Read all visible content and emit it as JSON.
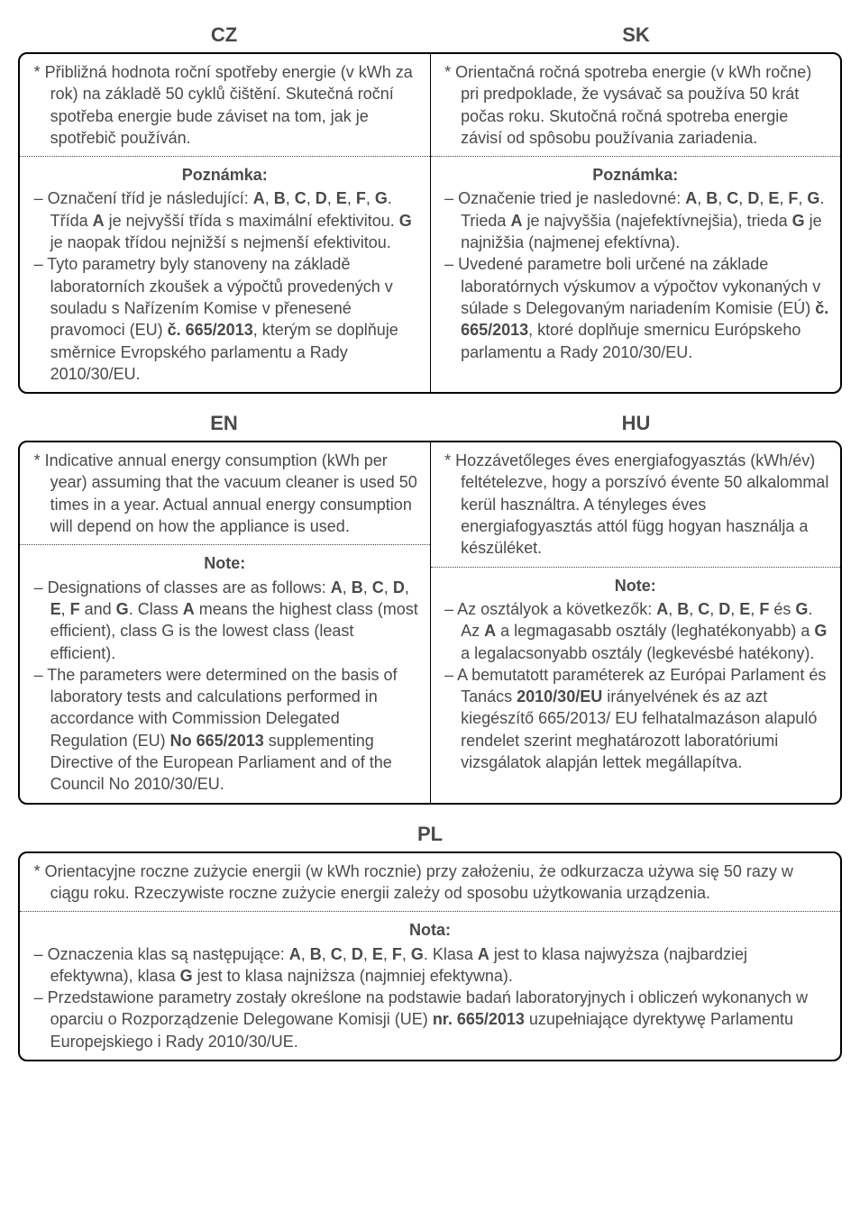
{
  "style": {
    "header_fontsize": 22,
    "body_fontsize": 18,
    "header_color": "#4a4a4a",
    "body_color": "#4a4a4a",
    "border_color": "#000000",
    "dotted_color": "#444444",
    "background": "#ffffff"
  },
  "sections": [
    {
      "type": "pair",
      "heads": [
        "CZ",
        "SK"
      ],
      "rows": [
        {
          "left": "* Přibližná hodnota roční spotřeby energie (v kWh za rok) na základě 50 cyklů čištění. Skutečná roční spotřeba energie bude záviset na tom, jak je spotřebič používán.",
          "right": "* Orientačná ročná spotreba energie (v kWh ročne) pri predpoklade, že vysávač sa používa 50 krát počas roku. Skutočná ročná spotreba energie závisí od spôsobu používania zariadenia."
        },
        {
          "left_note_title": "Poznámka:",
          "left_items": [
            "– Označení tříd je následující: <b>A</b>, <b>B</b>, <b>C</b>, <b>D</b>, <b>E</b>, <b>F</b>, <b>G</b>. Třída <b>A</b> je nejvyšší třída s maximální efektivitou. <b>G</b> je naopak třídou nejnižší s nejmenší efektivitou.",
            "– Tyto parametry byly stanoveny na základě laboratorních zkoušek a výpočtů provedených v souladu s Nařízením Komise v přenesené pravomoci (EU) <b>č. 665/2013</b>, kterým se doplňuje směrnice Evropského parlamentu a Rady 2010/30/EU."
          ],
          "right_note_title": "Poznámka:",
          "right_items": [
            "– Označenie tried je nasledovné: <b>A</b>, <b>B</b>, <b>C</b>, <b>D</b>, <b>E</b>, <b>F</b>, <b>G</b>. Trieda <b>A</b> je najvyššia (najefektívnejšia), trieda <b>G</b> je najnižšia (najmenej efektívna).",
            "– Uvedené parametre boli určené na základe laboratórnych výskumov a výpočtov vykonaných v súlade s Delegovaným nariadením Komisie (EÚ) <b>č. 665/2013</b>, ktoré doplňuje smernicu Európskeho parlamentu a Rady 2010/30/EU."
          ]
        }
      ]
    },
    {
      "type": "pair",
      "heads": [
        "EN",
        "HU"
      ],
      "rows": [
        {
          "left": "* Indicative annual energy consumption (kWh per year) assuming that the vacuum cleaner is used 50 times in a year. Actual annual energy consumption will depend on how the appliance is used.",
          "right": "* Hozzávetőleges éves energiafogyasztás (kWh/év) feltételezve, hogy a porszívó évente 50 alkalommal kerül használtra. A tényleges éves energiafogyasztás attól függ hogyan használja a készüléket."
        },
        {
          "left_note_title": "Note:",
          "left_items": [
            "– Designations of classes are as follows: <b>A</b>, <b>B</b>, <b>C</b>, <b>D</b>, <b>E</b>, <b>F</b> and <b>G</b>. Class <b>A</b> means the highest class (most efficient), class G is the lowest class (least efficient).",
            "– The parameters were determined on the basis of laboratory tests and calculations performed in accordance with Commission Delegated Regulation (EU) <b>No 665/2013</b> supplementing Directive of the European Parliament and of the Council No 2010/30/EU."
          ],
          "right_note_title": "Note:",
          "right_items": [
            "– Az osztályok a következők: <b>A</b>, <b>B</b>, <b>C</b>, <b>D</b>, <b>E</b>, <b>F</b> és <b>G</b>. Az <b>A</b> a legmagasabb osztály (leghatékonyabb) a <b>G</b> a legalacsonyabb osztály (legkevésbé hatékony).",
            "– A bemutatott paraméterek az Európai Parlament és Tanács <b>2010/30/EU</b> irányelvének és az azt kiegészítő 665/2013/ EU felhatalmazáson alapuló rendelet szerint meghatározott laboratóriumi vizsgálatok alapján lettek megállapítva."
          ]
        }
      ]
    },
    {
      "type": "single",
      "head": "PL",
      "rows": [
        {
          "text": "* Orientacyjne roczne zużycie energii (w kWh rocznie) przy założeniu, że odkurzacza używa się 50 razy w ciągu roku. Rzeczywiste roczne zużycie energii zależy od sposobu użytkowania urządzenia."
        },
        {
          "note_title": "Nota:",
          "items": [
            "– Oznaczenia klas są następujące: <b>A</b>, <b>B</b>, <b>C</b>, <b>D</b>, <b>E</b>, <b>F</b>, <b>G</b>. Klasa <b>A</b> jest to klasa najwyższa (najbardziej efektywna), klasa <b>G</b> jest to klasa najniższa (najmniej efektywna).",
            "– Przedstawione parametry zostały określone na podstawie badań laboratoryjnych i obliczeń wykonanych w oparciu o Rozporządzenie Delegowane Komisji (UE) <b>nr. 665/2013</b> uzupełniające dyrektywę Parlamentu Europejskiego i Rady 2010/30/UE."
          ]
        }
      ]
    }
  ]
}
